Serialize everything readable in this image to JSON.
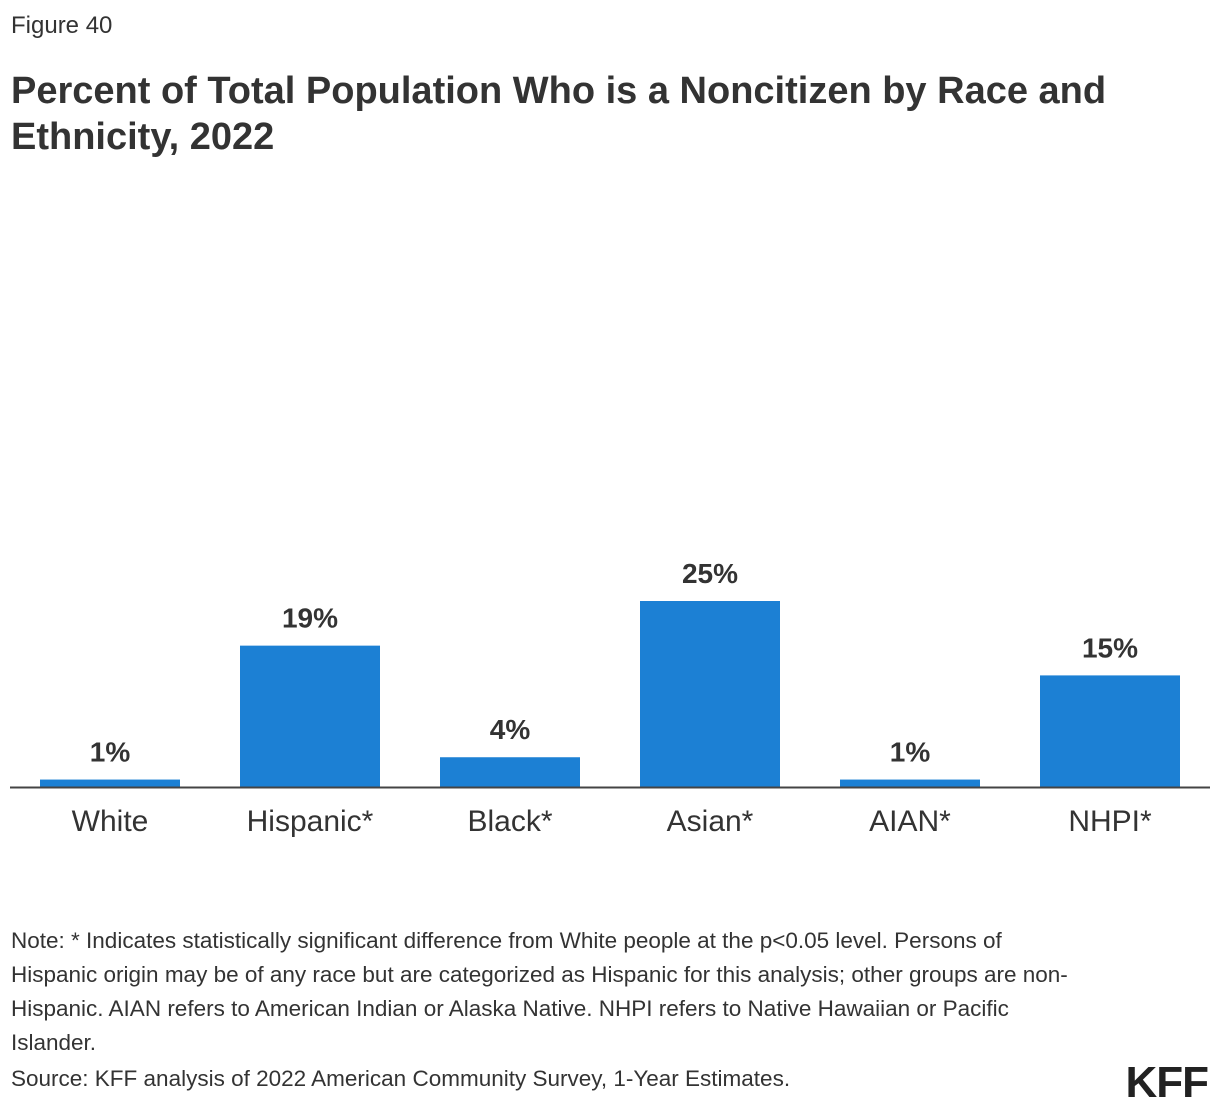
{
  "figure_label": "Figure 40",
  "chart_data": {
    "type": "bar",
    "title": "Percent of Total Population Who is a Noncitizen by Race and Ethnicity, 2022",
    "categories": [
      "White",
      "Hispanic*",
      "Black*",
      "Asian*",
      "AIAN*",
      "NHPI*"
    ],
    "values": [
      1,
      19,
      4,
      25,
      1,
      15
    ],
    "data_labels": [
      "1%",
      "19%",
      "4%",
      "25%",
      "1%",
      "15%"
    ],
    "ylim": [
      0,
      25
    ],
    "grid": false,
    "bar_color": "#1c80d4"
  },
  "notes": "Note: * Indicates statistically significant difference from White people at the p<0.05 level. Persons of Hispanic origin may be of any race but are categorized as Hispanic for this analysis; other groups are non-Hispanic. AIAN refers to American Indian or Alaska Native. NHPI refers to Native Hawaiian or Pacific Islander.",
  "source": "Source: KFF analysis of 2022 American Community Survey, 1-Year Estimates.",
  "logo": "KFF"
}
